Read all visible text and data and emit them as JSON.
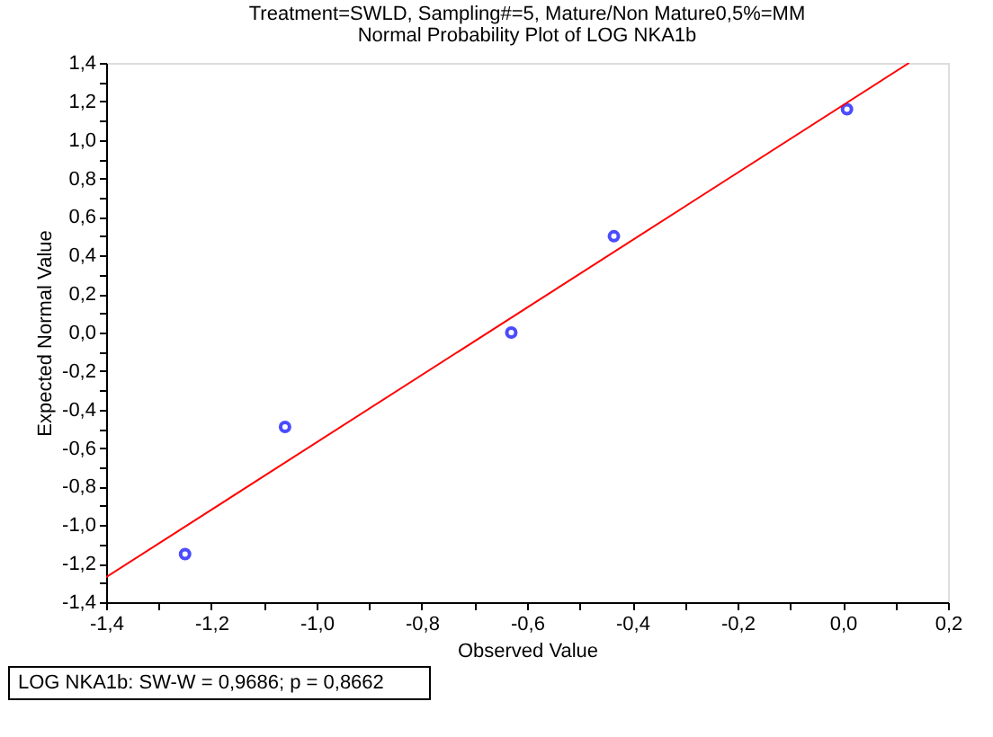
{
  "chart_data": {
    "type": "scatter",
    "title": "Treatment=SWLD, Sampling#=5, Mature/Non Mature0,5%=MM",
    "subtitle": "Normal Probability Plot of LOG NKA1b",
    "xlabel": "Observed Value",
    "ylabel": "Expected Normal Value",
    "x": [
      -1.25,
      -1.06,
      -0.63,
      -0.435,
      0.008
    ],
    "series": [
      {
        "color": "#0000ff",
        "marker": "circle",
        "values": [
          -1.15,
          -0.49,
          0.0,
          0.5,
          1.16
        ]
      },
      {
        "type": "line",
        "marker": "none",
        "color": "#ff0000",
        "x": [
          -1.4,
          0.126
        ],
        "values": [
          -1.27,
          1.4
        ]
      }
    ],
    "xlim": [
      -1.4,
      0.2
    ],
    "ylim": [
      -1.4,
      1.4
    ],
    "xticks": [
      {
        "value": -1.4,
        "label": "-1,4"
      },
      {
        "value": -1.3,
        "label": null
      },
      {
        "value": -1.2,
        "label": "-1,2"
      },
      {
        "value": -1.1,
        "label": null
      },
      {
        "value": -1.0,
        "label": "-1,0"
      },
      {
        "value": -0.9,
        "label": null
      },
      {
        "value": -0.8,
        "label": "-0,8"
      },
      {
        "value": -0.7,
        "label": null
      },
      {
        "value": -0.6,
        "label": "-0,6"
      },
      {
        "value": -0.5,
        "label": null
      },
      {
        "value": -0.4,
        "label": "-0,4"
      },
      {
        "value": -0.3,
        "label": null
      },
      {
        "value": -0.2,
        "label": "-0,2"
      },
      {
        "value": -0.1,
        "label": null
      },
      {
        "value": 0.0,
        "label": "0,0"
      },
      {
        "value": 0.1,
        "label": null
      },
      {
        "value": 0.2,
        "label": "0,2"
      }
    ],
    "yticks": [
      {
        "value": -1.4,
        "label": "-1,4"
      },
      {
        "value": -1.3,
        "label": null
      },
      {
        "value": -1.2,
        "label": "-1,2"
      },
      {
        "value": -1.1,
        "label": null
      },
      {
        "value": -1.0,
        "label": "-1,0"
      },
      {
        "value": -0.9,
        "label": null
      },
      {
        "value": -0.8,
        "label": "-0,8"
      },
      {
        "value": -0.7,
        "label": null
      },
      {
        "value": -0.6,
        "label": "-0,6"
      },
      {
        "value": -0.5,
        "label": null
      },
      {
        "value": -0.4,
        "label": "-0,4"
      },
      {
        "value": -0.3,
        "label": null
      },
      {
        "value": -0.2,
        "label": "-0,2"
      },
      {
        "value": -0.1,
        "label": null
      },
      {
        "value": 0.0,
        "label": "0,0"
      },
      {
        "value": 0.1,
        "label": null
      },
      {
        "value": 0.2,
        "label": "0,2"
      },
      {
        "value": 0.3,
        "label": null
      },
      {
        "value": 0.4,
        "label": "0,4"
      },
      {
        "value": 0.5,
        "label": null
      },
      {
        "value": 0.6,
        "label": "0,6"
      },
      {
        "value": 0.7,
        "label": null
      },
      {
        "value": 0.8,
        "label": "0,8"
      },
      {
        "value": 0.9,
        "label": null
      },
      {
        "value": 1.0,
        "label": "1,0"
      },
      {
        "value": 1.1,
        "label": null
      },
      {
        "value": 1.2,
        "label": "1,2"
      },
      {
        "value": 1.3,
        "label": null
      },
      {
        "value": 1.4,
        "label": "1,4"
      }
    ],
    "annotations": [
      "LOG NKA1b:  SW-W = 0,9686; p = 0,8662"
    ],
    "grid": false
  }
}
